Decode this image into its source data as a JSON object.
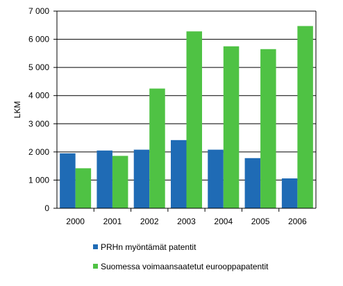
{
  "chart_data": {
    "type": "bar",
    "categories": [
      "2000",
      "2001",
      "2002",
      "2003",
      "2004",
      "2005",
      "2006"
    ],
    "series": [
      {
        "name": "PRHn myöntämät patentit",
        "color": "#1f6bb5",
        "values": [
          1950,
          2050,
          2080,
          2420,
          2080,
          1780,
          1060
        ]
      },
      {
        "name": "Suomessa voimaansaatetut eurooppapatentit",
        "color": "#4fc244",
        "values": [
          1420,
          1860,
          4250,
          6280,
          5750,
          5650,
          6470
        ]
      }
    ],
    "ylabel": "LKM",
    "ylim": [
      0,
      7000
    ],
    "yticks": [
      0,
      1000,
      2000,
      3000,
      4000,
      5000,
      6000,
      7000
    ],
    "ytick_labels": [
      "0",
      "1 000",
      "2 000",
      "3 000",
      "4 000",
      "5 000",
      "6 000",
      "7 000"
    ],
    "grid": true,
    "legend_position": "bottom"
  }
}
